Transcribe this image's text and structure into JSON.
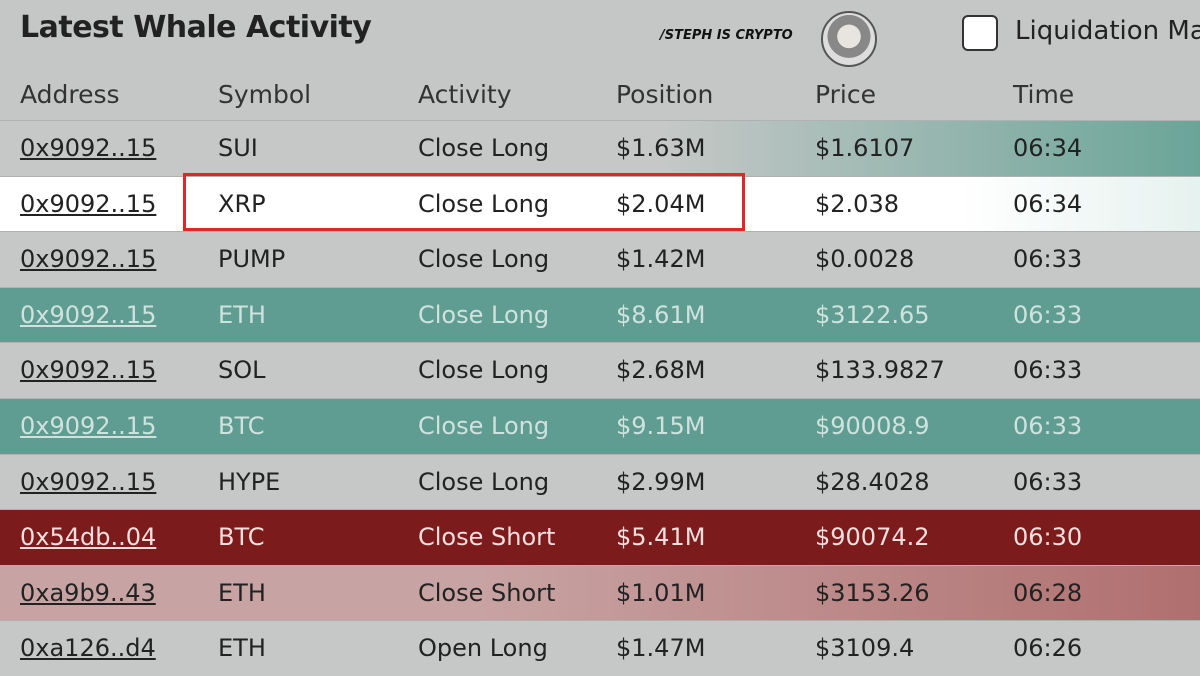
{
  "header": {
    "title": "Latest Whale Activity",
    "watermark": "/STEPH IS CRYPTO",
    "checkbox_label": "Liquidation Ma"
  },
  "table": {
    "columns": [
      "Address",
      "Symbol",
      "Activity",
      "Position",
      "Price",
      "Time"
    ],
    "rows": [
      [
        "0x9092..15",
        "SUI",
        "Close Long",
        "$1.63M",
        "$1.6107",
        "06:34"
      ],
      [
        "0x9092..15",
        "XRP",
        "Close Long",
        "$2.04M",
        "$2.038",
        "06:34"
      ],
      [
        "0x9092..15",
        "PUMP",
        "Close Long",
        "$1.42M",
        "$0.0028",
        "06:33"
      ],
      [
        "0x9092..15",
        "ETH",
        "Close Long",
        "$8.61M",
        "$3122.65",
        "06:33"
      ],
      [
        "0x9092..15",
        "SOL",
        "Close Long",
        "$2.68M",
        "$133.9827",
        "06:33"
      ],
      [
        "0x9092..15",
        "BTC",
        "Close Long",
        "$9.15M",
        "$90008.9",
        "06:33"
      ],
      [
        "0x9092..15",
        "HYPE",
        "Close Long",
        "$2.99M",
        "$28.4028",
        "06:33"
      ],
      [
        "0x54db..04",
        "BTC",
        "Close Short",
        "$5.41M",
        "$90074.2",
        "06:30"
      ],
      [
        "0xa9b9..43",
        "ETH",
        "Close Short",
        "$1.01M",
        "$3153.26",
        "06:28"
      ],
      [
        "0xa126..d4",
        "ETH",
        "Open Long",
        "$1.47M",
        "$3109.4",
        "06:26"
      ]
    ],
    "row_colors": [
      "#c6c8c7",
      "#ffffff",
      "#c6c8c7",
      "#5f9c92",
      "#c6c8c7",
      "#5f9c92",
      "#c6c8c7",
      "#7b1b1b",
      "#c8a3a3",
      "#c6c8c7"
    ],
    "row_text_colors": [
      "#222",
      "#222",
      "#222",
      "#cfe2de",
      "#222",
      "#cfe2de",
      "#222",
      "#f3dede",
      "#222",
      "#222"
    ]
  }
}
